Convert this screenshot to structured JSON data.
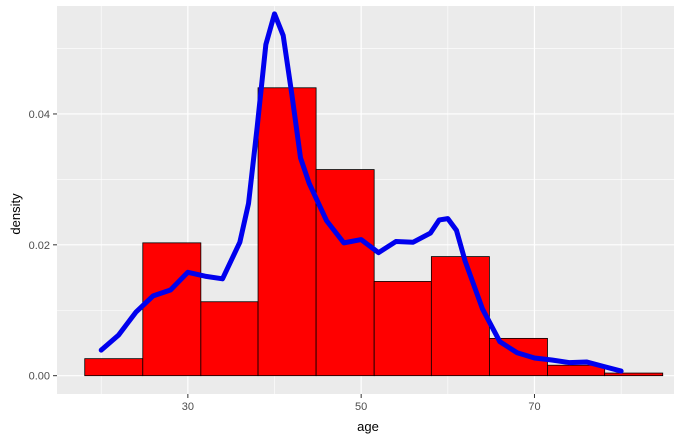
{
  "chart_data": {
    "type": "histogram",
    "xlabel": "age",
    "ylabel": "density",
    "xlim": [
      14.9,
      86.1
    ],
    "ylim": [
      -0.0028,
      0.0565
    ],
    "x_ticks": [
      30,
      50,
      70
    ],
    "x_minor_ticks": [
      20,
      40,
      60,
      80
    ],
    "y_ticks": [
      0.0,
      0.02,
      0.04
    ],
    "y_tick_labels": [
      "0.00",
      "0.02",
      "0.04"
    ],
    "y_minor_ticks": [
      0.01,
      0.03,
      0.05
    ],
    "grid": true,
    "bars": [
      {
        "x0": 18.1,
        "x1": 24.8,
        "density": 0.0026
      },
      {
        "x0": 24.8,
        "x1": 31.5,
        "density": 0.0203
      },
      {
        "x0": 31.5,
        "x1": 38.1,
        "density": 0.0113
      },
      {
        "x0": 38.1,
        "x1": 44.8,
        "density": 0.044
      },
      {
        "x0": 44.8,
        "x1": 51.5,
        "density": 0.0315
      },
      {
        "x0": 51.5,
        "x1": 58.1,
        "density": 0.0144
      },
      {
        "x0": 58.1,
        "x1": 64.8,
        "density": 0.0182
      },
      {
        "x0": 64.8,
        "x1": 71.5,
        "density": 0.0057
      },
      {
        "x0": 71.5,
        "x1": 78.1,
        "density": 0.0016
      },
      {
        "x0": 78.1,
        "x1": 84.8,
        "density": 0.0004
      }
    ],
    "density_curve": {
      "x": [
        20,
        22,
        24,
        26,
        28,
        30,
        32,
        34,
        36,
        37,
        38,
        39,
        40,
        41,
        42,
        43,
        44,
        46,
        48,
        50,
        52,
        54,
        56,
        58,
        59,
        60,
        61,
        62,
        64,
        66,
        68,
        70,
        72,
        74,
        76,
        78,
        80
      ],
      "y": [
        0.0039,
        0.0062,
        0.0097,
        0.0122,
        0.0131,
        0.0158,
        0.0152,
        0.0148,
        0.0204,
        0.0263,
        0.038,
        0.0506,
        0.0553,
        0.052,
        0.043,
        0.0333,
        0.0294,
        0.0237,
        0.0203,
        0.0208,
        0.0188,
        0.0205,
        0.0204,
        0.0218,
        0.0238,
        0.024,
        0.0222,
        0.0175,
        0.0102,
        0.0052,
        0.0035,
        0.0027,
        0.0024,
        0.002,
        0.0021,
        0.0014,
        0.0007
      ]
    },
    "colors": {
      "bar_fill": "#ff0000",
      "bar_outline": "#000000",
      "curve": "#0000ee",
      "panel_background": "#ebebeb",
      "grid": "#ffffff"
    }
  }
}
